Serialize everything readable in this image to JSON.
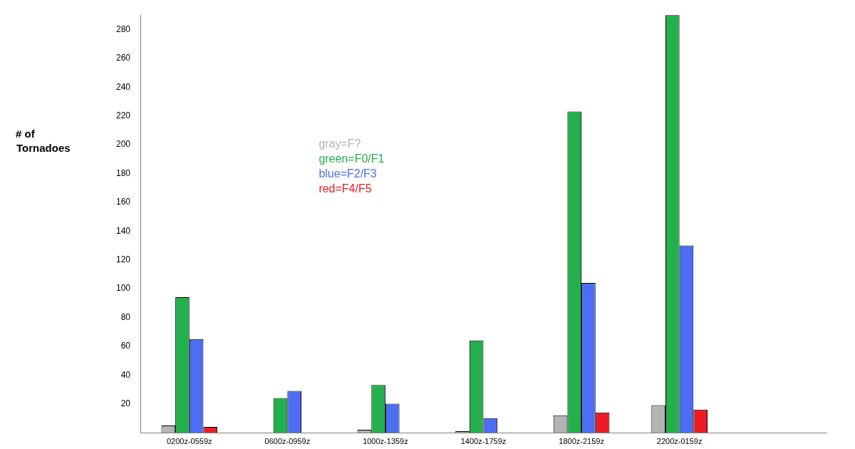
{
  "chart_data": {
    "type": "bar",
    "ylabel": "# of\nTornadoes",
    "categories": [
      "0200z-0559z",
      "0600z-0959z",
      "1000z-1359z",
      "1400z-1759z",
      "1800z-2159z",
      "2200z-0159z",
      null
    ],
    "series": [
      {
        "name": "gray=F?",
        "color": "#b4b4b4",
        "values": [
          5,
          0,
          2,
          1,
          12,
          19,
          null
        ]
      },
      {
        "name": "green=F0/F1",
        "color": "#22b14c",
        "values": [
          94,
          24,
          33,
          64,
          223,
          290,
          null
        ]
      },
      {
        "name": "blue=F2/F3",
        "color": "#4d6ef2",
        "values": [
          65,
          29,
          20,
          10,
          104,
          130,
          null
        ]
      },
      {
        "name": "red=F4/F5",
        "color": "#ed1c24",
        "values": [
          4,
          0,
          0,
          0,
          14,
          16,
          null
        ]
      }
    ],
    "ylim": [
      0,
      290
    ],
    "yticks": [
      20,
      40,
      60,
      80,
      100,
      120,
      140,
      160,
      180,
      200,
      220,
      240,
      260,
      280
    ],
    "grid": false,
    "legend": "top left"
  }
}
